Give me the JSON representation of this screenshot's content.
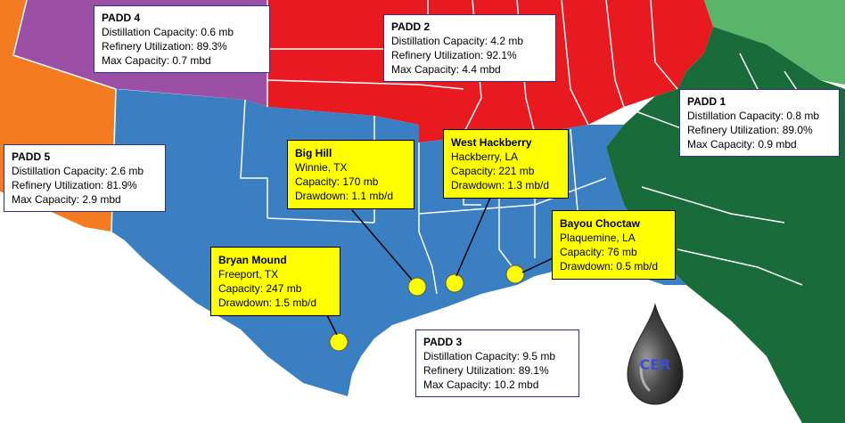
{
  "colors": {
    "padd1": "#1a6b3a",
    "padd1_light": "#58b56a",
    "padd2": "#e8191f",
    "padd3": "#3a7fc1",
    "padd4": "#9b4fa5",
    "padd5": "#f47b20",
    "site_marker": "#ffff00",
    "label_box": "#ffff00",
    "border_lines": "#ffffff",
    "logo_drop": "#4a4a4a"
  },
  "padd_boxes": [
    {
      "id": "padd4",
      "title": "PADD 4",
      "distillation": "Distillation Capacity:  0.6 mb",
      "utilization": "Refinery Utilization: 89.3%",
      "max": "Max Capacity: 0.7 mbd"
    },
    {
      "id": "padd2",
      "title": "PADD 2",
      "distillation": "Distillation Capacity: 4.2 mb",
      "utilization": "Refinery Utilization: 92.1%",
      "max": "Max Capacity: 4.4 mbd"
    },
    {
      "id": "padd1",
      "title": "PADD 1",
      "distillation": "Distillation Capacity: 0.8 mb",
      "utilization": "Refinery Utilization: 89.0%",
      "max": "Max Capacity: 0.9 mbd"
    },
    {
      "id": "padd5",
      "title": "PADD 5",
      "distillation": "Distillation Capacity:  2.6 mb",
      "utilization": "Refinery Utilization: 81.9%",
      "max": "Max Capacity: 2.9 mbd"
    },
    {
      "id": "padd3",
      "title": "PADD 3",
      "distillation": "Distillation Capacity:  9.5 mb",
      "utilization": "Refinery Utilization: 89.1%",
      "max": "Max Capacity: 10.2 mbd"
    }
  ],
  "spr_sites": [
    {
      "id": "big-hill",
      "name": "Big Hill",
      "location": "Winnie, TX",
      "capacity": "Capacity: 170 mb",
      "drawdown": "Drawdown: 1.1 mb/d"
    },
    {
      "id": "west-hackberry",
      "name": "West Hackberry",
      "location": "Hackberry, LA",
      "capacity": "Capacity: 221 mb",
      "drawdown": "Drawdown: 1.3 mb/d"
    },
    {
      "id": "bayou-choctaw",
      "name": "Bayou Choctaw",
      "location": "Plaquemine, LA",
      "capacity": "Capacity: 76 mb",
      "drawdown": "Drawdown: 0.5 mb/d"
    },
    {
      "id": "bryan-mound",
      "name": "Bryan Mound",
      "location": "Freeport, TX",
      "capacity": "Capacity: 247 mb",
      "drawdown": "Drawdown: 1.5 mb/d"
    }
  ],
  "logo": {
    "text": "CER",
    "icon": "oil-drop-icon"
  }
}
